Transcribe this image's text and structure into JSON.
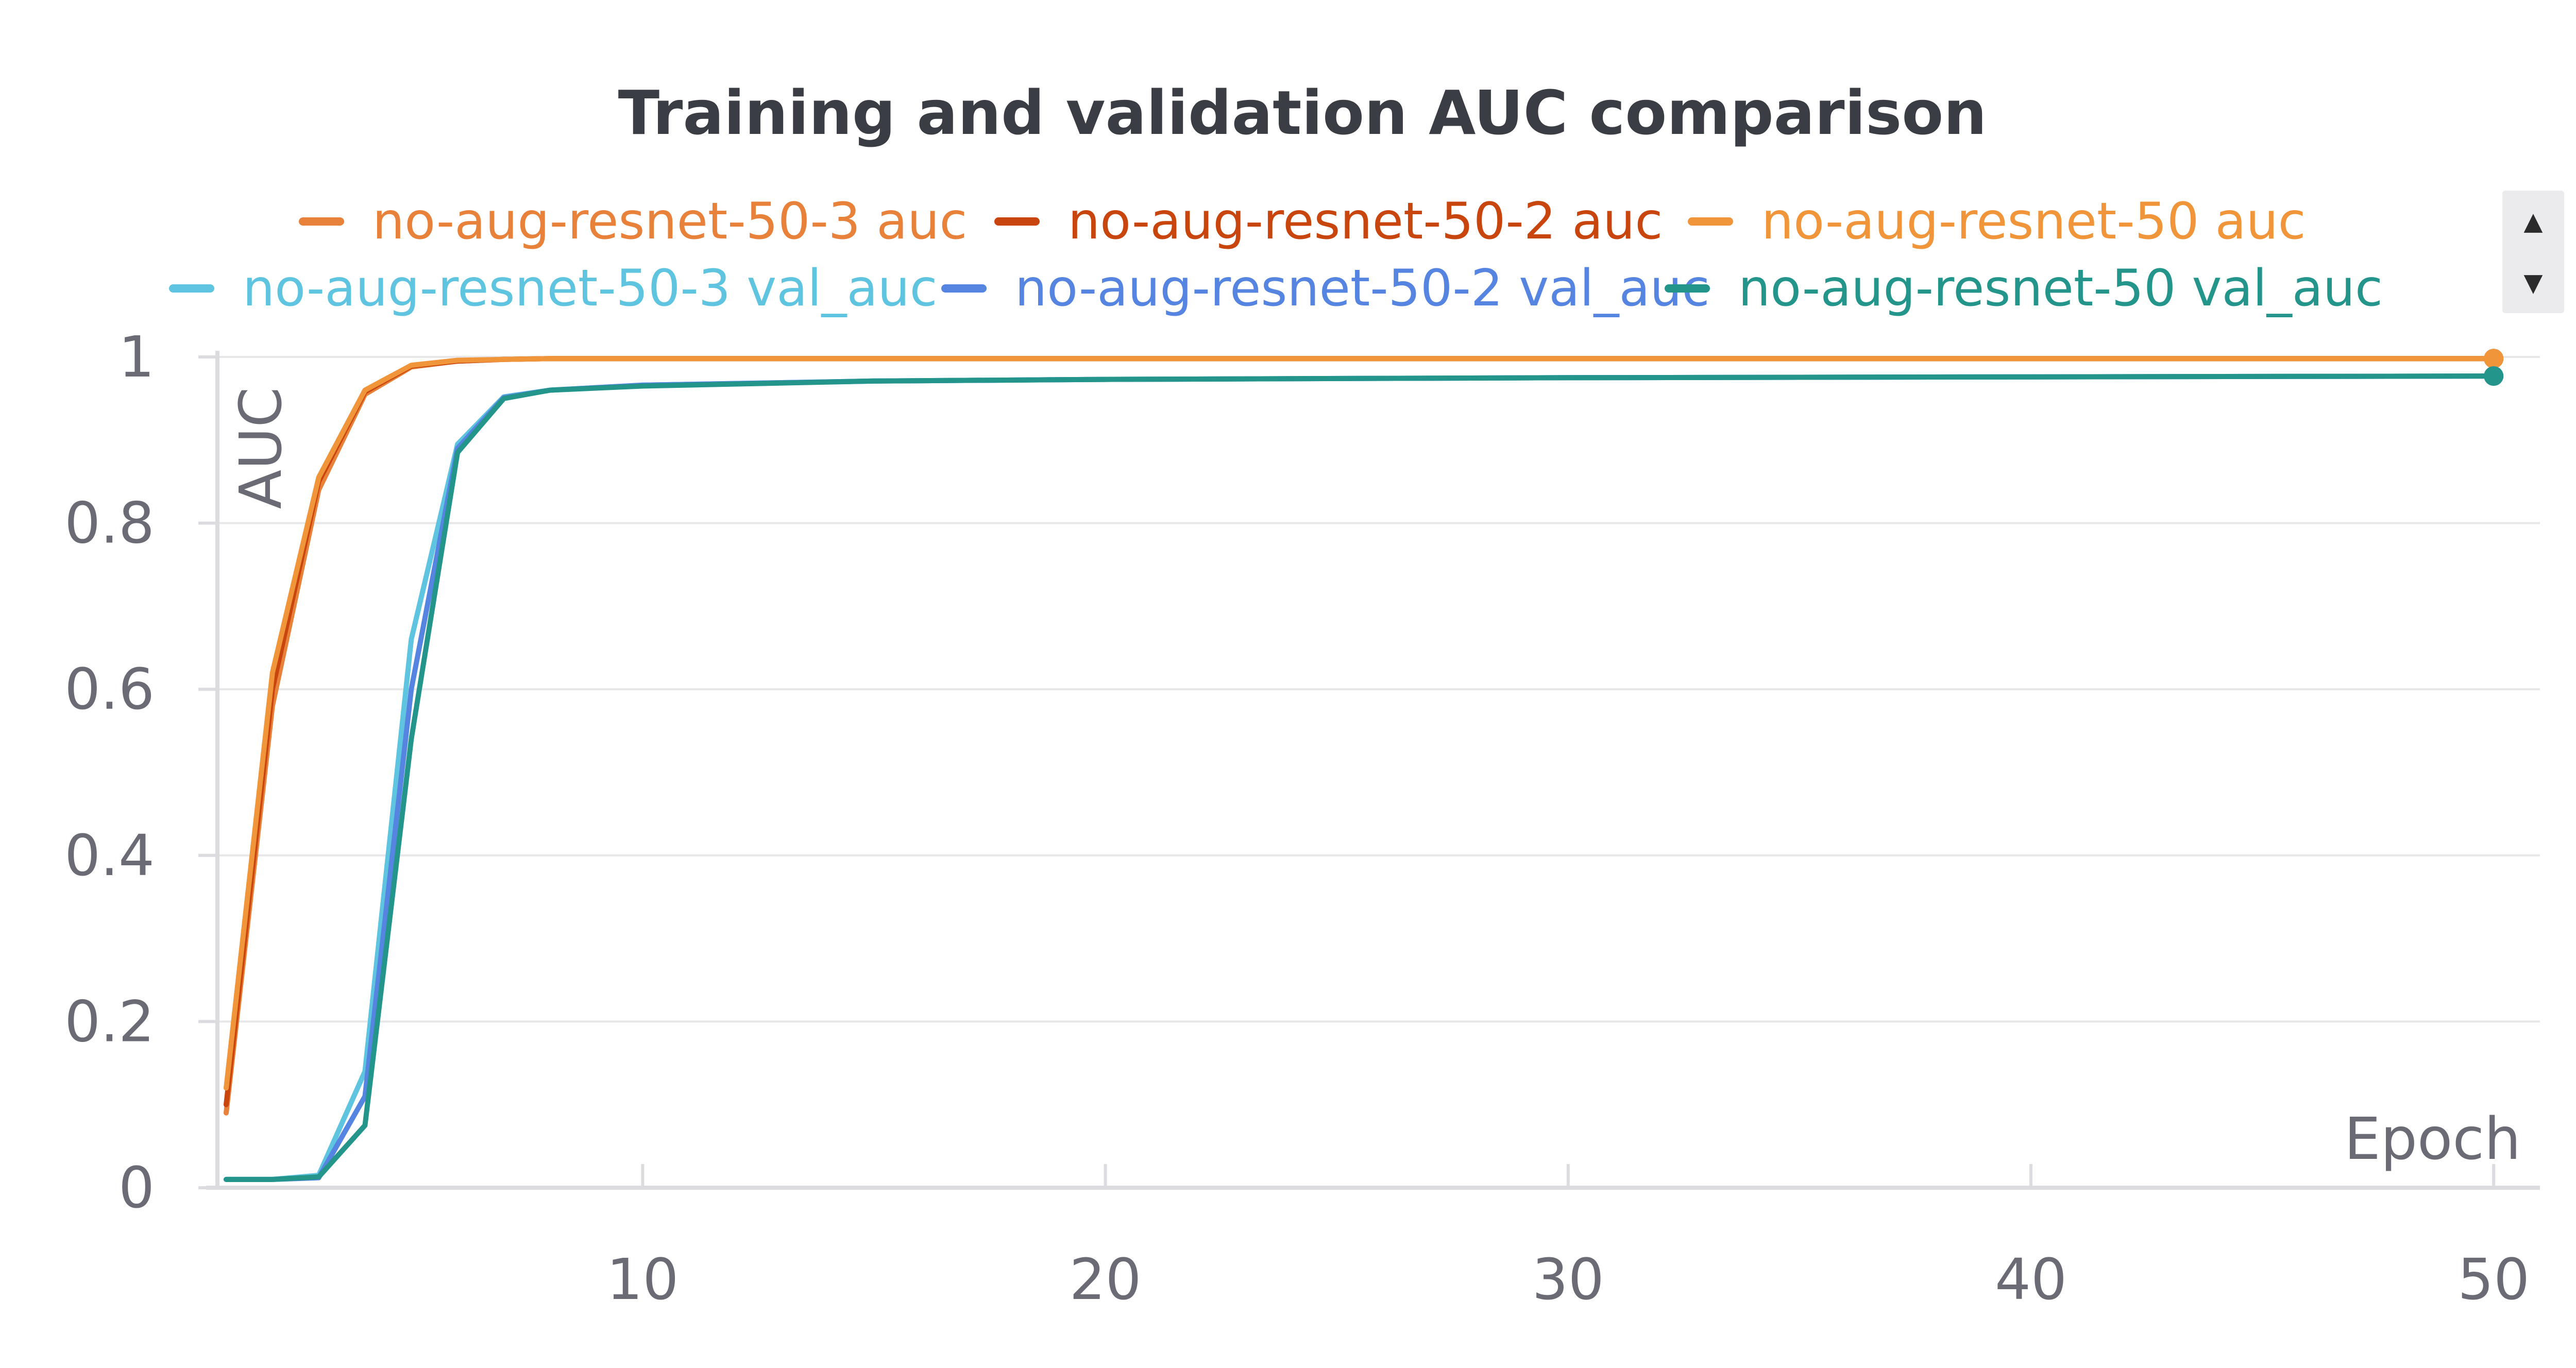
{
  "colors": {
    "grid": "#e7e7e9",
    "axis": "#dcdce0",
    "tick_text": "#6b6b76",
    "title_text": "#3b3d45"
  },
  "legend_scroll": {
    "up_icon": "triangle-up",
    "down_icon": "triangle-down"
  },
  "chart_data": {
    "type": "line",
    "title": "Training and validation AUC comparison",
    "xlabel": "Epoch",
    "ylabel": "AUC",
    "xlim": [
      0.9,
      51
    ],
    "ylim": [
      0,
      1
    ],
    "x_ticks": [
      10,
      20,
      30,
      40,
      50
    ],
    "y_ticks": [
      0,
      0.2,
      0.4,
      0.6,
      0.8,
      1
    ],
    "y_tick_labels": [
      "0",
      "0.2",
      "0.4",
      "0.6",
      "0.8",
      "1"
    ],
    "grid": true,
    "legend_position": "top",
    "series": [
      {
        "name": "no-aug-resnet-50-3 auc",
        "color": "#e8813a",
        "x": [
          1,
          2,
          3,
          4,
          5,
          6,
          7,
          8,
          10,
          15,
          20,
          30,
          40,
          50
        ],
        "y": [
          0.09,
          0.58,
          0.84,
          0.955,
          0.988,
          0.995,
          0.997,
          0.998,
          0.998,
          0.998,
          0.998,
          0.998,
          0.998,
          0.998
        ]
      },
      {
        "name": "no-aug-resnet-50-2 auc",
        "color": "#c9450e",
        "x": [
          1,
          2,
          3,
          4,
          5,
          6,
          7,
          8,
          10,
          15,
          20,
          30,
          40,
          50
        ],
        "y": [
          0.1,
          0.6,
          0.85,
          0.958,
          0.989,
          0.995,
          0.997,
          0.998,
          0.998,
          0.998,
          0.998,
          0.998,
          0.998,
          0.998
        ]
      },
      {
        "name": "no-aug-resnet-50 auc",
        "color": "#f0953a",
        "x": [
          1,
          2,
          3,
          4,
          5,
          6,
          7,
          8,
          10,
          15,
          20,
          30,
          40,
          50
        ],
        "y": [
          0.12,
          0.62,
          0.855,
          0.96,
          0.99,
          0.996,
          0.997,
          0.998,
          0.998,
          0.998,
          0.998,
          0.998,
          0.998,
          0.998
        ]
      },
      {
        "name": "no-aug-resnet-50-3 val_auc",
        "color": "#5ec4df",
        "x": [
          1,
          2,
          3,
          4,
          5,
          6,
          7,
          8,
          10,
          15,
          20,
          30,
          40,
          50
        ],
        "y": [
          0.01,
          0.01,
          0.015,
          0.14,
          0.66,
          0.895,
          0.952,
          0.96,
          0.966,
          0.971,
          0.973,
          0.975,
          0.976,
          0.977
        ]
      },
      {
        "name": "no-aug-resnet-50-2 val_auc",
        "color": "#5585e0",
        "x": [
          1,
          2,
          3,
          4,
          5,
          6,
          7,
          8,
          10,
          15,
          20,
          30,
          40,
          50
        ],
        "y": [
          0.01,
          0.01,
          0.012,
          0.11,
          0.6,
          0.89,
          0.951,
          0.96,
          0.966,
          0.971,
          0.973,
          0.975,
          0.976,
          0.977
        ]
      },
      {
        "name": "no-aug-resnet-50 val_auc",
        "color": "#23958b",
        "x": [
          1,
          2,
          3,
          4,
          5,
          6,
          7,
          8,
          10,
          15,
          20,
          30,
          40,
          50
        ],
        "y": [
          0.01,
          0.01,
          0.013,
          0.075,
          0.54,
          0.885,
          0.95,
          0.96,
          0.965,
          0.971,
          0.973,
          0.975,
          0.976,
          0.977
        ]
      }
    ]
  }
}
